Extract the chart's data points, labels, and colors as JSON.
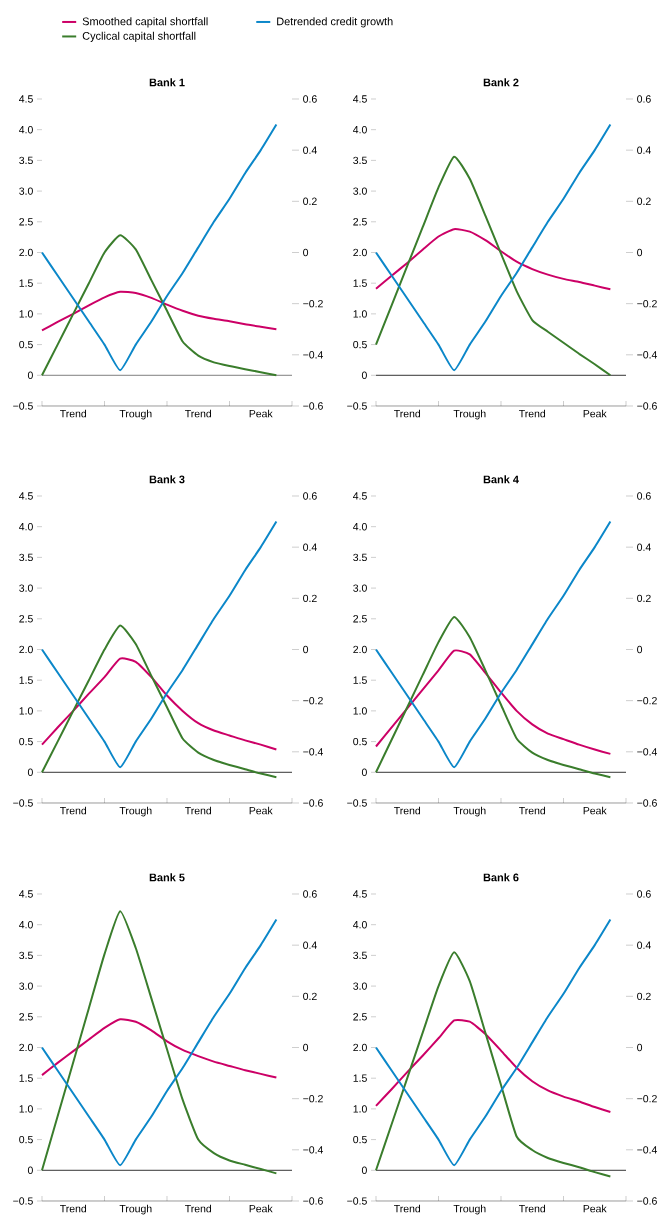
{
  "chart_data": [
    {
      "type": "line",
      "title": "Bank 1",
      "legend": "top",
      "categories": [
        null,
        null,
        "Trend",
        null,
        null,
        null,
        "Trough",
        null,
        null,
        null,
        "Trend",
        null,
        null,
        null,
        "Peak",
        null
      ],
      "ylim": [
        -0.5,
        4.5
      ],
      "yticks": [
        {
          "value": -0.5,
          "label": "−0.5"
        },
        0,
        0.5,
        {
          "value": 1,
          "label": "1.0"
        },
        1.5,
        {
          "value": 2,
          "label": "2.0"
        },
        2.5,
        {
          "value": 3,
          "label": "3.0"
        },
        3.5,
        {
          "value": 4,
          "label": "4.0"
        },
        4.5
      ],
      "y2lim": [
        -0.6,
        0.6
      ],
      "y2ticks": [
        {
          "value": -0.6,
          "label": "−0.6"
        },
        {
          "value": -0.4,
          "label": "−0.4"
        },
        {
          "value": -0.2,
          "label": "−0.2"
        },
        0,
        0.2,
        0.4,
        0.6
      ],
      "ref_lines": [
        {
          "axis": "y",
          "value": 0,
          "color": "#7f7f7f"
        }
      ],
      "series": [
        {
          "name": "Smoothed capital shortfall",
          "color": "#cc0066",
          "values": [
            0.73,
            0.87,
            1.0,
            1.14,
            1.27,
            1.36,
            1.34,
            1.26,
            1.15,
            1.05,
            0.97,
            0.92,
            0.88,
            0.83,
            0.79,
            0.75
          ]
        },
        {
          "name": "Cyclical capital shortfall",
          "color": "#3a7d2c",
          "values": [
            0,
            0.5,
            1.0,
            1.5,
            2.0,
            2.28,
            2.05,
            1.55,
            1.05,
            0.55,
            0.32,
            0.21,
            0.15,
            0.1,
            0.05,
            0
          ]
        },
        {
          "name": "Detrended credit growth",
          "color": "#0b87c9",
          "axis": "y2",
          "values": [
            0,
            -0.09,
            -0.18,
            -0.27,
            -0.36,
            -0.46,
            -0.36,
            -0.27,
            -0.17,
            -0.08,
            0.02,
            0.12,
            0.21,
            0.31,
            0.4,
            0.5
          ]
        }
      ]
    },
    {
      "type": "line",
      "title": "Bank 2",
      "categories": [
        null,
        null,
        "Trend",
        null,
        null,
        null,
        "Trough",
        null,
        null,
        null,
        "Trend",
        null,
        null,
        null,
        "Peak",
        null
      ],
      "ylim": [
        -0.5,
        4.5
      ],
      "yticks": [
        {
          "value": -0.5,
          "label": "−0.5"
        },
        0,
        0.5,
        {
          "value": 1,
          "label": "1.0"
        },
        1.5,
        {
          "value": 2,
          "label": "2.0"
        },
        2.5,
        {
          "value": 3,
          "label": "3.0"
        },
        3.5,
        {
          "value": 4,
          "label": "4.0"
        },
        4.5
      ],
      "y2lim": [
        -0.6,
        0.6
      ],
      "y2ticks": [
        {
          "value": -0.6,
          "label": "−0.6"
        },
        {
          "value": -0.4,
          "label": "−0.4"
        },
        {
          "value": -0.2,
          "label": "−0.2"
        },
        0,
        0.2,
        0.4,
        0.6
      ],
      "ref_lines": [
        {
          "axis": "y",
          "value": 0,
          "color": "#333333"
        }
      ],
      "series": [
        {
          "color": "#cc0066",
          "values": [
            1.41,
            1.62,
            1.83,
            2.05,
            2.26,
            2.38,
            2.34,
            2.2,
            2.02,
            1.85,
            1.73,
            1.64,
            1.57,
            1.52,
            1.46,
            1.4
          ]
        },
        {
          "color": "#3a7d2c",
          "values": [
            0.5,
            1.14,
            1.78,
            2.42,
            3.06,
            3.56,
            3.2,
            2.6,
            1.98,
            1.37,
            0.9,
            0.71,
            0.53,
            0.35,
            0.18,
            0
          ]
        },
        {
          "color": "#0b87c9",
          "axis": "y2",
          "values": [
            0,
            -0.09,
            -0.18,
            -0.27,
            -0.36,
            -0.46,
            -0.36,
            -0.27,
            -0.17,
            -0.08,
            0.02,
            0.12,
            0.21,
            0.31,
            0.4,
            0.5
          ]
        }
      ]
    },
    {
      "type": "line",
      "title": "Bank 3",
      "categories": [
        null,
        null,
        "Trend",
        null,
        null,
        null,
        "Trough",
        null,
        null,
        null,
        "Trend",
        null,
        null,
        null,
        "Peak",
        null
      ],
      "ylim": [
        -0.5,
        4.5
      ],
      "yticks": [
        {
          "value": -0.5,
          "label": "−0.5"
        },
        0,
        0.5,
        {
          "value": 1,
          "label": "1.0"
        },
        1.5,
        {
          "value": 2,
          "label": "2.0"
        },
        2.5,
        {
          "value": 3,
          "label": "3.0"
        },
        3.5,
        {
          "value": 4,
          "label": "4.0"
        },
        4.5
      ],
      "y2lim": [
        -0.6,
        0.6
      ],
      "y2ticks": [
        {
          "value": -0.6,
          "label": "−0.6"
        },
        {
          "value": -0.4,
          "label": "−0.4"
        },
        {
          "value": -0.2,
          "label": "−0.2"
        },
        0,
        0.2,
        0.4,
        0.6
      ],
      "ref_lines": [
        {
          "axis": "y",
          "value": 0,
          "color": "#333333"
        }
      ],
      "series": [
        {
          "color": "#cc0066",
          "values": [
            0.45,
            0.73,
            1.0,
            1.28,
            1.55,
            1.85,
            1.8,
            1.55,
            1.25,
            1.0,
            0.8,
            0.68,
            0.6,
            0.52,
            0.45,
            0.37
          ]
        },
        {
          "color": "#3a7d2c",
          "values": [
            0,
            0.5,
            1.0,
            1.5,
            2.0,
            2.39,
            2.09,
            1.57,
            1.06,
            0.55,
            0.32,
            0.2,
            0.12,
            0.05,
            -0.02,
            -0.08
          ]
        },
        {
          "color": "#0b87c9",
          "axis": "y2",
          "values": [
            0,
            -0.09,
            -0.18,
            -0.27,
            -0.36,
            -0.46,
            -0.36,
            -0.27,
            -0.17,
            -0.08,
            0.02,
            0.12,
            0.21,
            0.31,
            0.4,
            0.5
          ]
        }
      ]
    },
    {
      "type": "line",
      "title": "Bank 4",
      "categories": [
        null,
        null,
        "Trend",
        null,
        null,
        null,
        "Trough",
        null,
        null,
        null,
        "Trend",
        null,
        null,
        null,
        "Peak",
        null
      ],
      "ylim": [
        -0.5,
        4.5
      ],
      "yticks": [
        {
          "value": -0.5,
          "label": "−0.5"
        },
        0,
        0.5,
        {
          "value": 1,
          "label": "1.0"
        },
        1.5,
        {
          "value": 2,
          "label": "2.0"
        },
        2.5,
        {
          "value": 3,
          "label": "3.0"
        },
        3.5,
        {
          "value": 4,
          "label": "4.0"
        },
        4.5
      ],
      "y2lim": [
        -0.6,
        0.6
      ],
      "y2ticks": [
        {
          "value": -0.6,
          "label": "−0.6"
        },
        {
          "value": -0.4,
          "label": "−0.4"
        },
        {
          "value": -0.2,
          "label": "−0.2"
        },
        0,
        0.2,
        0.4,
        0.6
      ],
      "ref_lines": [
        {
          "axis": "y",
          "value": 0,
          "color": "#333333"
        }
      ],
      "series": [
        {
          "color": "#cc0066",
          "values": [
            0.42,
            0.73,
            1.04,
            1.35,
            1.66,
            1.98,
            1.92,
            1.62,
            1.3,
            1.0,
            0.78,
            0.63,
            0.54,
            0.45,
            0.37,
            0.3
          ]
        },
        {
          "color": "#3a7d2c",
          "values": [
            0,
            0.53,
            1.06,
            1.59,
            2.12,
            2.53,
            2.2,
            1.66,
            1.1,
            0.55,
            0.32,
            0.2,
            0.12,
            0.05,
            -0.02,
            -0.08
          ]
        },
        {
          "color": "#0b87c9",
          "axis": "y2",
          "values": [
            0,
            -0.09,
            -0.18,
            -0.27,
            -0.36,
            -0.46,
            -0.36,
            -0.27,
            -0.17,
            -0.08,
            0.02,
            0.12,
            0.21,
            0.31,
            0.4,
            0.5
          ]
        }
      ]
    },
    {
      "type": "line",
      "title": "Bank 5",
      "categories": [
        null,
        null,
        "Trend",
        null,
        null,
        null,
        "Trough",
        null,
        null,
        null,
        "Trend",
        null,
        null,
        null,
        "Peak",
        null
      ],
      "ylim": [
        -0.5,
        4.5
      ],
      "yticks": [
        {
          "value": -0.5,
          "label": "−0.5"
        },
        0,
        0.5,
        {
          "value": 1,
          "label": "1.0"
        },
        1.5,
        {
          "value": 2,
          "label": "2.0"
        },
        2.5,
        {
          "value": 3,
          "label": "3.0"
        },
        3.5,
        {
          "value": 4,
          "label": "4.0"
        },
        4.5
      ],
      "y2lim": [
        -0.6,
        0.6
      ],
      "y2ticks": [
        {
          "value": -0.6,
          "label": "−0.6"
        },
        {
          "value": -0.4,
          "label": "−0.4"
        },
        {
          "value": -0.2,
          "label": "−0.2"
        },
        0,
        0.2,
        0.4,
        0.6
      ],
      "ref_lines": [
        {
          "axis": "y",
          "value": 0,
          "color": "#333333"
        }
      ],
      "series": [
        {
          "color": "#cc0066",
          "values": [
            1.55,
            1.75,
            1.94,
            2.13,
            2.32,
            2.46,
            2.42,
            2.28,
            2.1,
            1.96,
            1.86,
            1.77,
            1.7,
            1.63,
            1.57,
            1.51
          ]
        },
        {
          "color": "#3a7d2c",
          "values": [
            0,
            0.88,
            1.76,
            2.64,
            3.52,
            4.22,
            3.62,
            2.8,
            1.97,
            1.15,
            0.5,
            0.28,
            0.16,
            0.09,
            0.02,
            -0.05
          ]
        },
        {
          "color": "#0b87c9",
          "axis": "y2",
          "values": [
            0,
            -0.09,
            -0.18,
            -0.27,
            -0.36,
            -0.46,
            -0.36,
            -0.27,
            -0.17,
            -0.08,
            0.02,
            0.12,
            0.21,
            0.31,
            0.4,
            0.5
          ]
        }
      ]
    },
    {
      "type": "line",
      "title": "Bank 6",
      "categories": [
        null,
        null,
        "Trend",
        null,
        null,
        null,
        "Trough",
        null,
        null,
        null,
        "Trend",
        null,
        null,
        null,
        "Peak",
        null
      ],
      "ylim": [
        -0.5,
        4.5
      ],
      "yticks": [
        {
          "value": -0.5,
          "label": "−0.5"
        },
        0,
        0.5,
        {
          "value": 1,
          "label": "1.0"
        },
        1.5,
        {
          "value": 2,
          "label": "2.0"
        },
        2.5,
        {
          "value": 3,
          "label": "3.0"
        },
        3.5,
        {
          "value": 4,
          "label": "4.0"
        },
        4.5
      ],
      "y2lim": [
        -0.6,
        0.6
      ],
      "y2ticks": [
        {
          "value": -0.6,
          "label": "−0.6"
        },
        {
          "value": -0.4,
          "label": "−0.4"
        },
        {
          "value": -0.2,
          "label": "−0.2"
        },
        0,
        0.2,
        0.4,
        0.6
      ],
      "ref_lines": [
        {
          "axis": "y",
          "value": 0,
          "color": "#333333"
        }
      ],
      "series": [
        {
          "color": "#cc0066",
          "values": [
            1.05,
            1.32,
            1.6,
            1.87,
            2.15,
            2.44,
            2.42,
            2.22,
            1.95,
            1.67,
            1.45,
            1.3,
            1.2,
            1.12,
            1.03,
            0.95
          ]
        },
        {
          "color": "#3a7d2c",
          "values": [
            0,
            0.75,
            1.5,
            2.25,
            3.0,
            3.55,
            3.08,
            2.24,
            1.39,
            0.55,
            0.33,
            0.2,
            0.12,
            0.05,
            -0.03,
            -0.1
          ]
        },
        {
          "color": "#0b87c9",
          "axis": "y2",
          "values": [
            0,
            -0.09,
            -0.18,
            -0.27,
            -0.36,
            -0.46,
            -0.36,
            -0.27,
            -0.17,
            -0.08,
            0.02,
            0.12,
            0.21,
            0.31,
            0.4,
            0.5
          ]
        }
      ]
    }
  ]
}
